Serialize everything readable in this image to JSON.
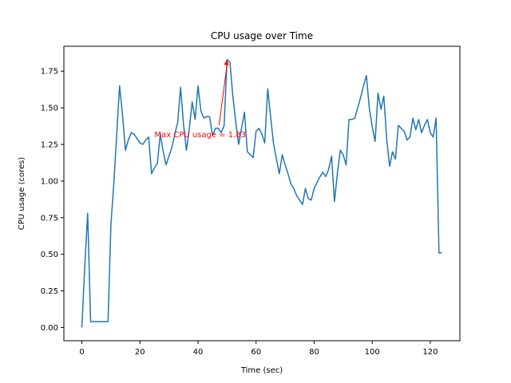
{
  "chart_data": {
    "type": "line",
    "title": "CPU usage over Time",
    "xlabel": "Time (sec)",
    "ylabel": "CPU usage (cores)",
    "xlim": [
      -6.2,
      130.2
    ],
    "ylim": [
      -0.09,
      1.92
    ],
    "xticks": [
      0,
      20,
      40,
      60,
      80,
      100,
      120
    ],
    "yticks": [
      0.0,
      0.25,
      0.5,
      0.75,
      1.0,
      1.25,
      1.5,
      1.75
    ],
    "ytick_labels": [
      "0.00",
      "0.25",
      "0.50",
      "0.75",
      "1.00",
      "1.25",
      "1.50",
      "1.75"
    ],
    "grid": false,
    "line_color": "#1f77b4",
    "annotation": {
      "text": "Max CPU usage = 1.83",
      "color": "#ff0000",
      "point": [
        50,
        1.83
      ],
      "text_anchor_point": [
        25,
        1.32
      ]
    },
    "series": [
      {
        "x": [
          0,
          1,
          2,
          3,
          4,
          5,
          6,
          7,
          8,
          9,
          10,
          11,
          12,
          13,
          14,
          15,
          16,
          17,
          18,
          19,
          20,
          21,
          22,
          23,
          24,
          25,
          26,
          27,
          28,
          29,
          30,
          31,
          32,
          33,
          34,
          35,
          36,
          37,
          38,
          39,
          40,
          41,
          42,
          43,
          44,
          45,
          46,
          47,
          48,
          49,
          50,
          51,
          52,
          53,
          54,
          55,
          56,
          57,
          58,
          59,
          60,
          61,
          62,
          63,
          64,
          65,
          66,
          67,
          68,
          69,
          70,
          71,
          72,
          73,
          74,
          75,
          76,
          77,
          78,
          79,
          80,
          81,
          82,
          83,
          84,
          85,
          86,
          87,
          88,
          89,
          90,
          91,
          92,
          93,
          94,
          95,
          96,
          97,
          98,
          99,
          100,
          101,
          102,
          103,
          104,
          105,
          106,
          107,
          108,
          109,
          110,
          111,
          112,
          113,
          114,
          115,
          116,
          117,
          118,
          119,
          120,
          121,
          122,
          123,
          124
        ],
        "y": [
          0.0,
          0.42,
          0.78,
          0.04,
          0.04,
          0.04,
          0.04,
          0.04,
          0.04,
          0.04,
          0.7,
          0.98,
          1.32,
          1.65,
          1.45,
          1.21,
          1.28,
          1.33,
          1.32,
          1.29,
          1.26,
          1.25,
          1.28,
          1.3,
          1.05,
          1.09,
          1.12,
          1.32,
          1.2,
          1.11,
          1.17,
          1.23,
          1.32,
          1.4,
          1.64,
          1.39,
          1.21,
          1.36,
          1.54,
          1.42,
          1.65,
          1.48,
          1.43,
          1.44,
          1.44,
          1.31,
          1.36,
          1.36,
          1.33,
          1.38,
          1.83,
          1.81,
          1.58,
          1.4,
          1.25,
          1.36,
          1.47,
          1.2,
          1.18,
          1.16,
          1.34,
          1.36,
          1.32,
          1.26,
          1.63,
          1.44,
          1.26,
          1.15,
          1.05,
          1.18,
          1.11,
          1.05,
          0.98,
          0.95,
          0.9,
          0.87,
          0.84,
          0.95,
          0.88,
          0.87,
          0.95,
          0.99,
          1.03,
          1.06,
          1.03,
          1.08,
          1.17,
          0.86,
          1.05,
          1.21,
          1.18,
          1.11,
          1.42,
          1.42,
          1.43,
          1.5,
          1.57,
          1.65,
          1.72,
          1.5,
          1.37,
          1.27,
          1.6,
          1.49,
          1.58,
          1.28,
          1.1,
          1.2,
          1.15,
          1.38,
          1.36,
          1.34,
          1.28,
          1.3,
          1.43,
          1.35,
          1.42,
          1.33,
          1.38,
          1.42,
          1.33,
          1.3,
          1.43,
          0.51,
          0.51
        ]
      }
    ]
  }
}
